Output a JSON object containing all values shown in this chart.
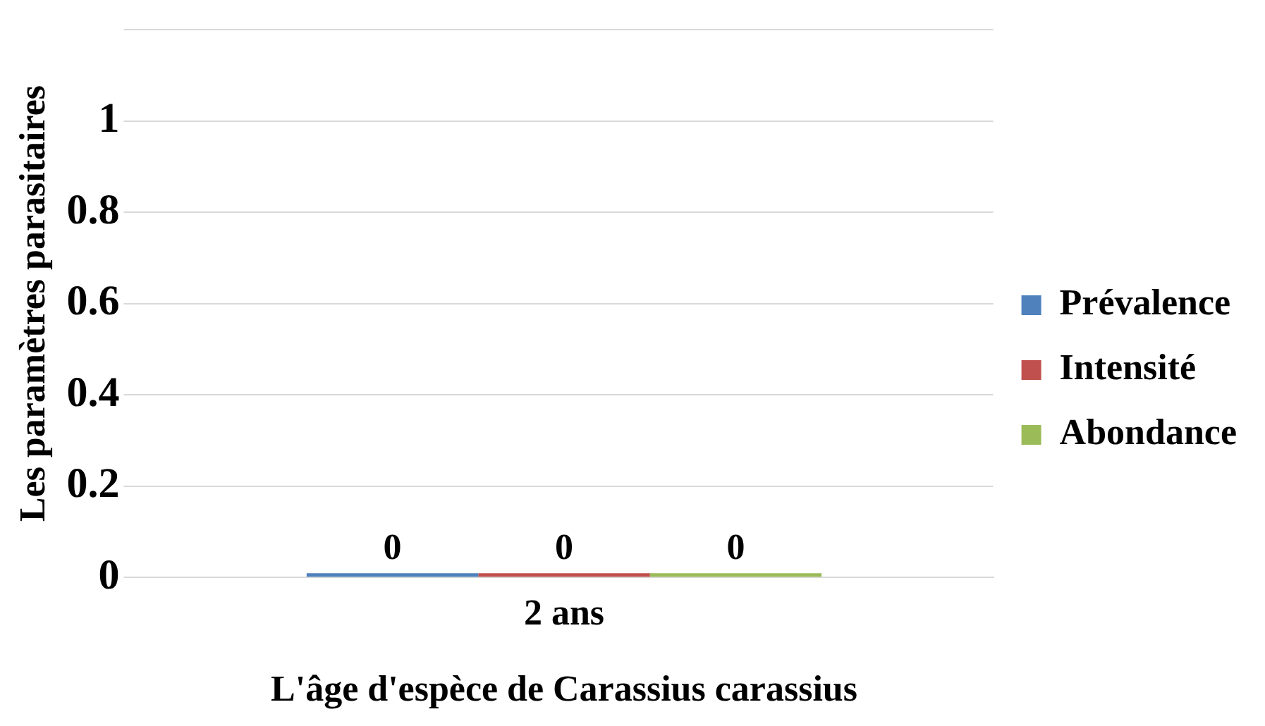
{
  "chart_data": {
    "type": "bar",
    "categories": [
      "2 ans"
    ],
    "series": [
      {
        "name": "Prévalence",
        "color": "#4f81bd",
        "values": [
          0
        ]
      },
      {
        "name": "Intensité",
        "color": "#c0504d",
        "values": [
          0
        ]
      },
      {
        "name": "Abondance",
        "color": "#9bbb59",
        "values": [
          0
        ]
      }
    ],
    "xlabel": "L'âge d'espèce de Carassius carassius",
    "ylabel": "Les paramètres parasitaires",
    "ylim": [
      0,
      1.2
    ],
    "yticks": [
      0,
      0.2,
      0.4,
      0.6,
      0.8,
      1,
      {
        "value": 1.2,
        "label": null
      }
    ],
    "grid": "y",
    "legend": "right",
    "data_labels": true
  }
}
